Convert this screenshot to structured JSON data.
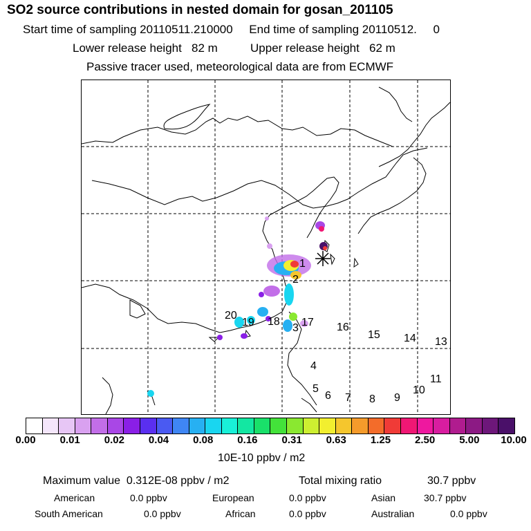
{
  "header": {
    "title": "SO2 source contributions in nested domain for gosan_201105",
    "line1": "Start time of sampling 20110511.210000     End time of sampling 20110512.     0",
    "line2": "Lower release height   82 m          Upper release height   62 m",
    "line3": "Passive tracer used, meteorological data are from ECMWF"
  },
  "map": {
    "region_labels": [
      "1",
      "2",
      "3",
      "4",
      "5",
      "6",
      "7",
      "8",
      "9",
      "10",
      "11",
      "13",
      "14",
      "15",
      "16",
      "17",
      "18",
      "19",
      "20"
    ],
    "receptor_marker": "asterisk"
  },
  "colorbar": {
    "colors": [
      "#ffffff",
      "#f4e6fb",
      "#e7c6f5",
      "#d9a1f0",
      "#c26ee8",
      "#a947e6",
      "#8a1fe6",
      "#5a2ff0",
      "#4a5af2",
      "#3f86f4",
      "#27b0f2",
      "#19d6f0",
      "#19f0d8",
      "#13e7a2",
      "#19e06a",
      "#43e23a",
      "#8ae830",
      "#cdef31",
      "#f2ef2f",
      "#f5c62d",
      "#f59b2b",
      "#f36c2a",
      "#f03b37",
      "#f01774",
      "#ee189f",
      "#d81da0",
      "#b01c8f",
      "#8c1a84",
      "#6d177a",
      "#4a1069"
    ],
    "tick_labels": [
      "0.00",
      "0.01",
      "0.02",
      "0.04",
      "0.08",
      "0.16",
      "0.31",
      "0.63",
      "1.25",
      "2.50",
      "5.00",
      "10.00"
    ],
    "units": "10E-10 ppbv / m2"
  },
  "stats": {
    "max_label": "Maximum value  0.312E-08 ppbv / m2",
    "total_label": "Total mixing ratio",
    "total_value": "30.7 ppbv",
    "american_label": "American",
    "american_value": "0.0 ppbv",
    "european_label": "European",
    "european_value": "0.0 ppbv",
    "asian_label": "Asian",
    "asian_value": "30.7 ppbv",
    "south_american_label": "South American",
    "south_american_value": "0.0 ppbv",
    "african_label": "African",
    "african_value": "0.0 ppbv",
    "australian_label": "Australian",
    "australian_value": "0.0 ppbv"
  }
}
